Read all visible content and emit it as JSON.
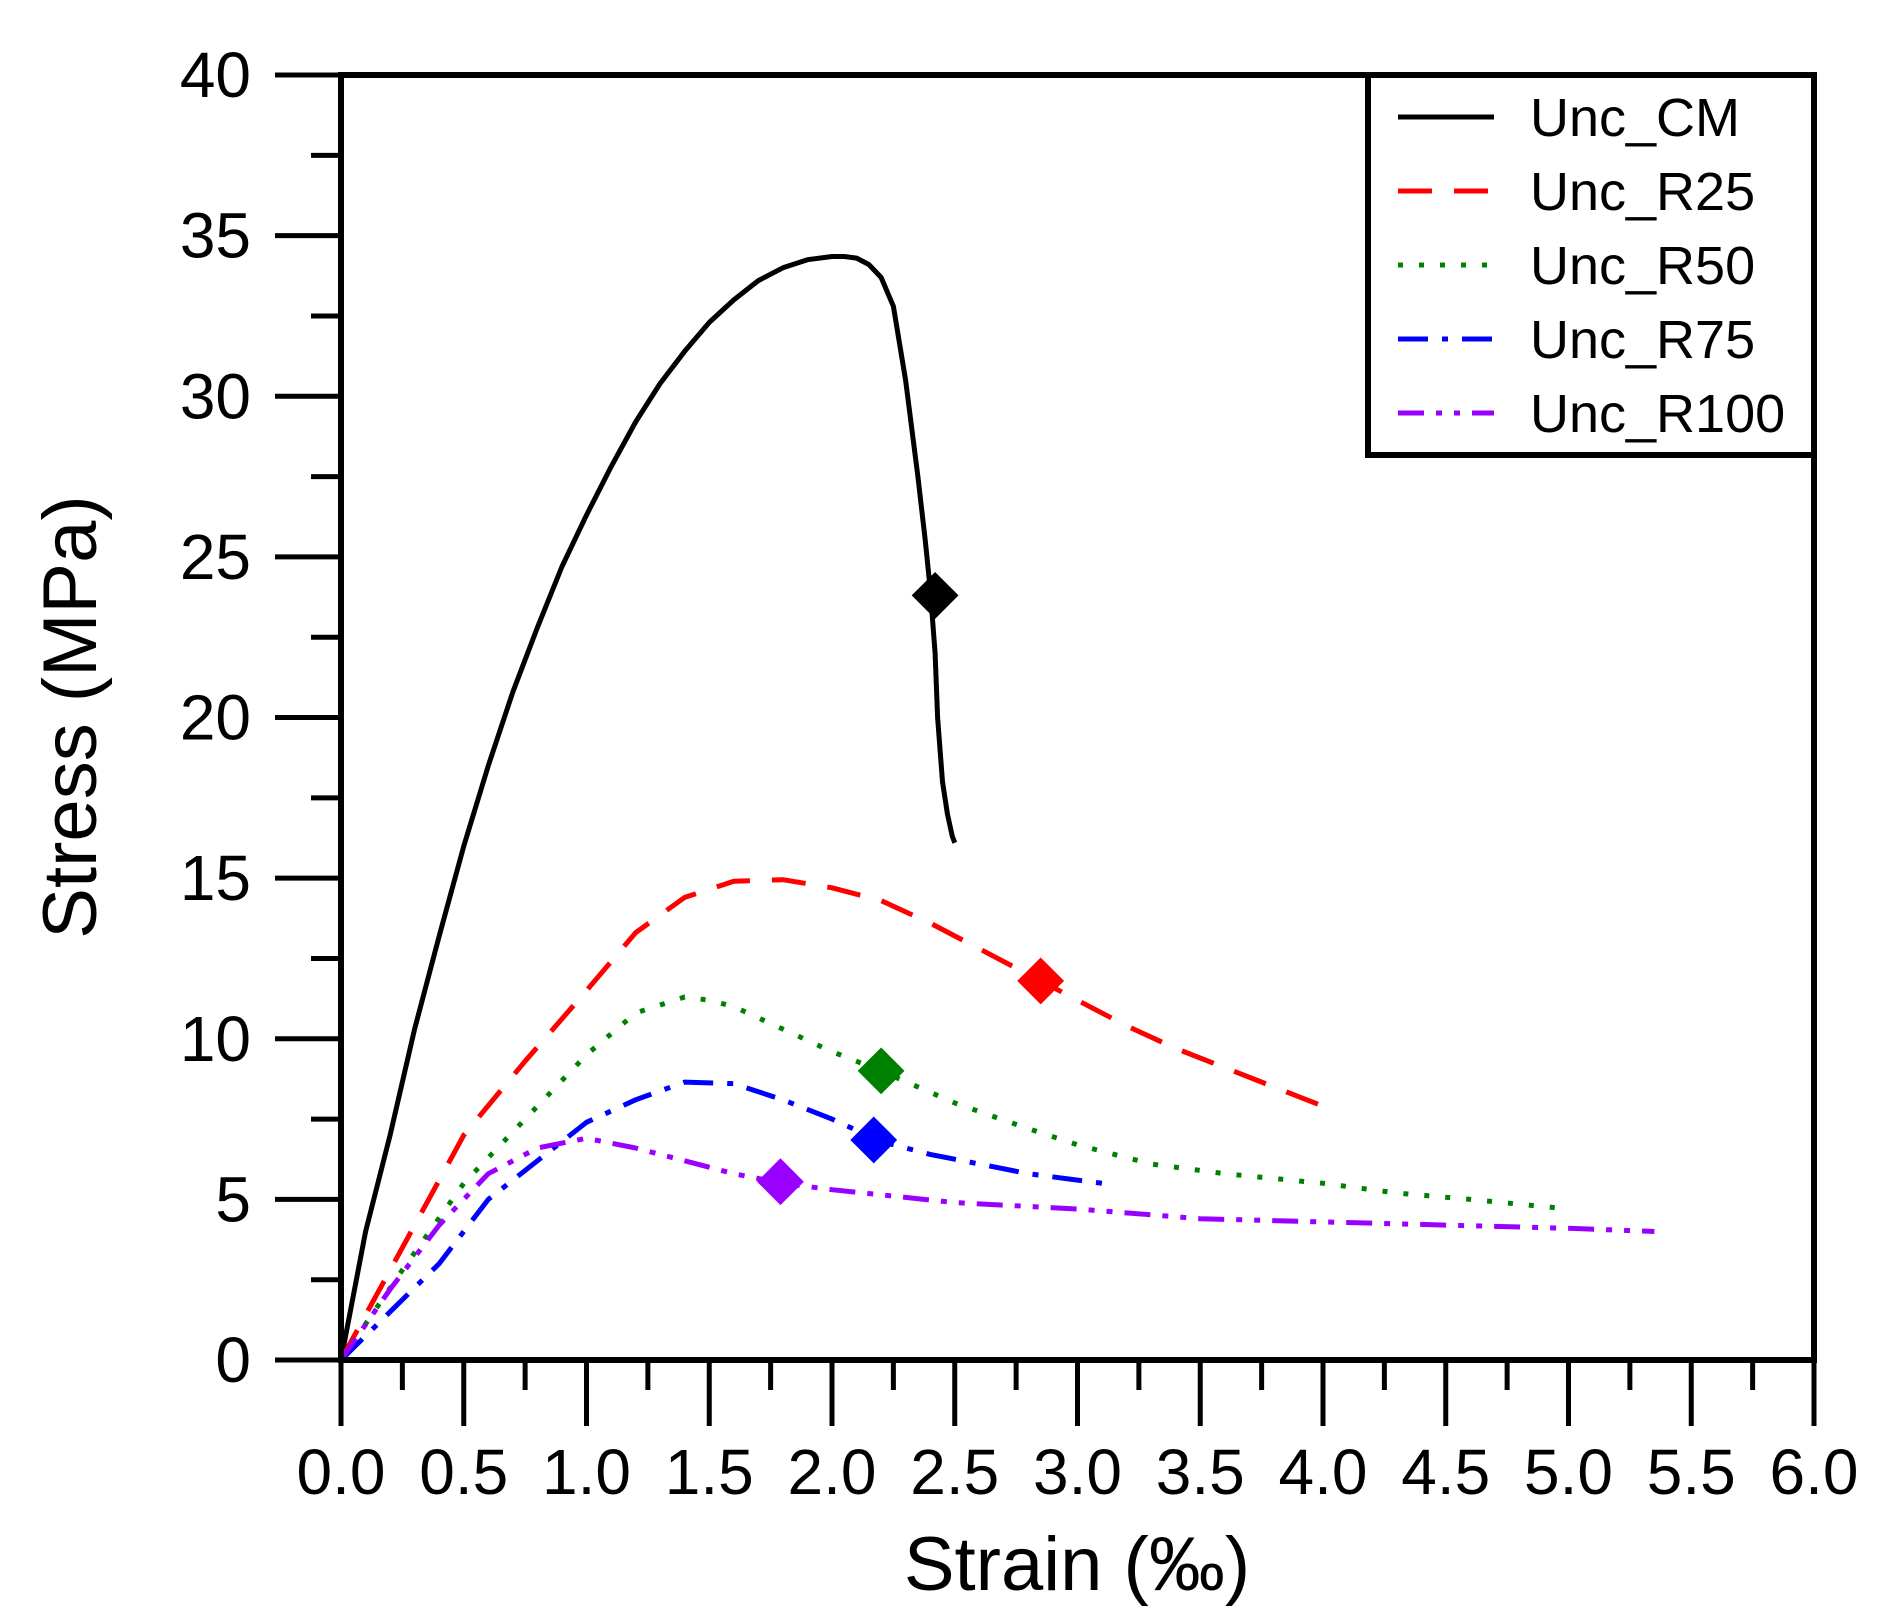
{
  "chart_data": {
    "type": "line",
    "title": "",
    "xlabel": "Strain (‰)",
    "ylabel": "Stress (MPa)",
    "xlim": [
      0,
      6
    ],
    "ylim": [
      0,
      40
    ],
    "xticks": [
      "0.0",
      "0.5",
      "1.0",
      "1.5",
      "2.0",
      "2.5",
      "3.0",
      "3.5",
      "4.0",
      "4.5",
      "5.0",
      "5.5",
      "6.0"
    ],
    "yticks": [
      "0",
      "5",
      "10",
      "15",
      "20",
      "25",
      "30",
      "35",
      "40"
    ],
    "legend_position": "top-right",
    "series": [
      {
        "name": "Unc_CM",
        "color": "#000000",
        "dash": "solid",
        "x": [
          0,
          0.05,
          0.1,
          0.2,
          0.3,
          0.4,
          0.5,
          0.6,
          0.7,
          0.8,
          0.9,
          1.0,
          1.1,
          1.2,
          1.3,
          1.4,
          1.5,
          1.6,
          1.7,
          1.8,
          1.9,
          2.0,
          2.05,
          2.1,
          2.15,
          2.2,
          2.25,
          2.3,
          2.35,
          2.38,
          2.4,
          2.42,
          2.43,
          2.45,
          2.47,
          2.49,
          2.5
        ],
        "y": [
          0,
          2.0,
          4.0,
          7.0,
          10.3,
          13.2,
          16.0,
          18.5,
          20.8,
          22.8,
          24.7,
          26.3,
          27.8,
          29.2,
          30.4,
          31.4,
          32.3,
          33.0,
          33.6,
          34.0,
          34.25,
          34.35,
          34.35,
          34.3,
          34.1,
          33.7,
          32.8,
          30.5,
          27.5,
          25.5,
          24.0,
          22.0,
          20.0,
          18.0,
          17.0,
          16.3,
          16.1
        ],
        "marker": {
          "x": 2.42,
          "y": 23.8
        }
      },
      {
        "name": "Unc_R25",
        "color": "#ff0000",
        "dash": "dashed",
        "x": [
          0,
          0.25,
          0.5,
          0.75,
          1.0,
          1.2,
          1.4,
          1.6,
          1.8,
          2.0,
          2.2,
          2.4,
          2.6,
          2.8,
          3.0,
          3.2,
          3.4,
          3.6,
          3.8,
          4.0,
          4.05
        ],
        "y": [
          0,
          3.5,
          7.0,
          9.3,
          11.5,
          13.3,
          14.4,
          14.9,
          14.95,
          14.7,
          14.3,
          13.6,
          12.8,
          12.0,
          11.2,
          10.4,
          9.7,
          9.1,
          8.5,
          7.9,
          7.6
        ],
        "marker": {
          "x": 2.85,
          "y": 11.8
        }
      },
      {
        "name": "Unc_R50",
        "color": "#008000",
        "dash": "dotted",
        "x": [
          0,
          0.25,
          0.5,
          0.75,
          1.0,
          1.2,
          1.4,
          1.5,
          1.6,
          1.8,
          2.0,
          2.2,
          2.5,
          2.8,
          3.0,
          3.3,
          3.6,
          4.0,
          4.3,
          4.6,
          5.0
        ],
        "y": [
          0,
          2.8,
          5.5,
          7.5,
          9.5,
          10.8,
          11.3,
          11.2,
          11.0,
          10.3,
          9.6,
          9.0,
          8.0,
          7.2,
          6.7,
          6.1,
          5.8,
          5.5,
          5.2,
          5.0,
          4.7
        ],
        "marker": {
          "x": 2.2,
          "y": 9.0
        }
      },
      {
        "name": "Unc_R75",
        "color": "#0000ff",
        "dash": "dashdot",
        "x": [
          0,
          0.2,
          0.4,
          0.6,
          0.8,
          1.0,
          1.2,
          1.4,
          1.6,
          1.8,
          2.0,
          2.2,
          2.4,
          2.6,
          2.8,
          3.0,
          3.1
        ],
        "y": [
          0,
          1.5,
          3.0,
          5.0,
          6.2,
          7.4,
          8.1,
          8.65,
          8.6,
          8.1,
          7.5,
          6.8,
          6.4,
          6.1,
          5.8,
          5.6,
          5.5
        ],
        "marker": {
          "x": 2.17,
          "y": 6.85
        }
      },
      {
        "name": "Unc_R100",
        "color": "#9900ff",
        "dash": "dashdotdot",
        "x": [
          0,
          0.2,
          0.4,
          0.6,
          0.8,
          1.0,
          1.2,
          1.4,
          1.6,
          1.8,
          2.0,
          2.5,
          3.0,
          3.5,
          4.0,
          4.5,
          5.0,
          5.35
        ],
        "y": [
          0,
          2.2,
          4.2,
          5.8,
          6.6,
          6.9,
          6.6,
          6.2,
          5.8,
          5.5,
          5.3,
          4.9,
          4.7,
          4.4,
          4.3,
          4.2,
          4.1,
          4.0
        ],
        "marker": {
          "x": 1.79,
          "y": 5.55
        }
      }
    ]
  }
}
